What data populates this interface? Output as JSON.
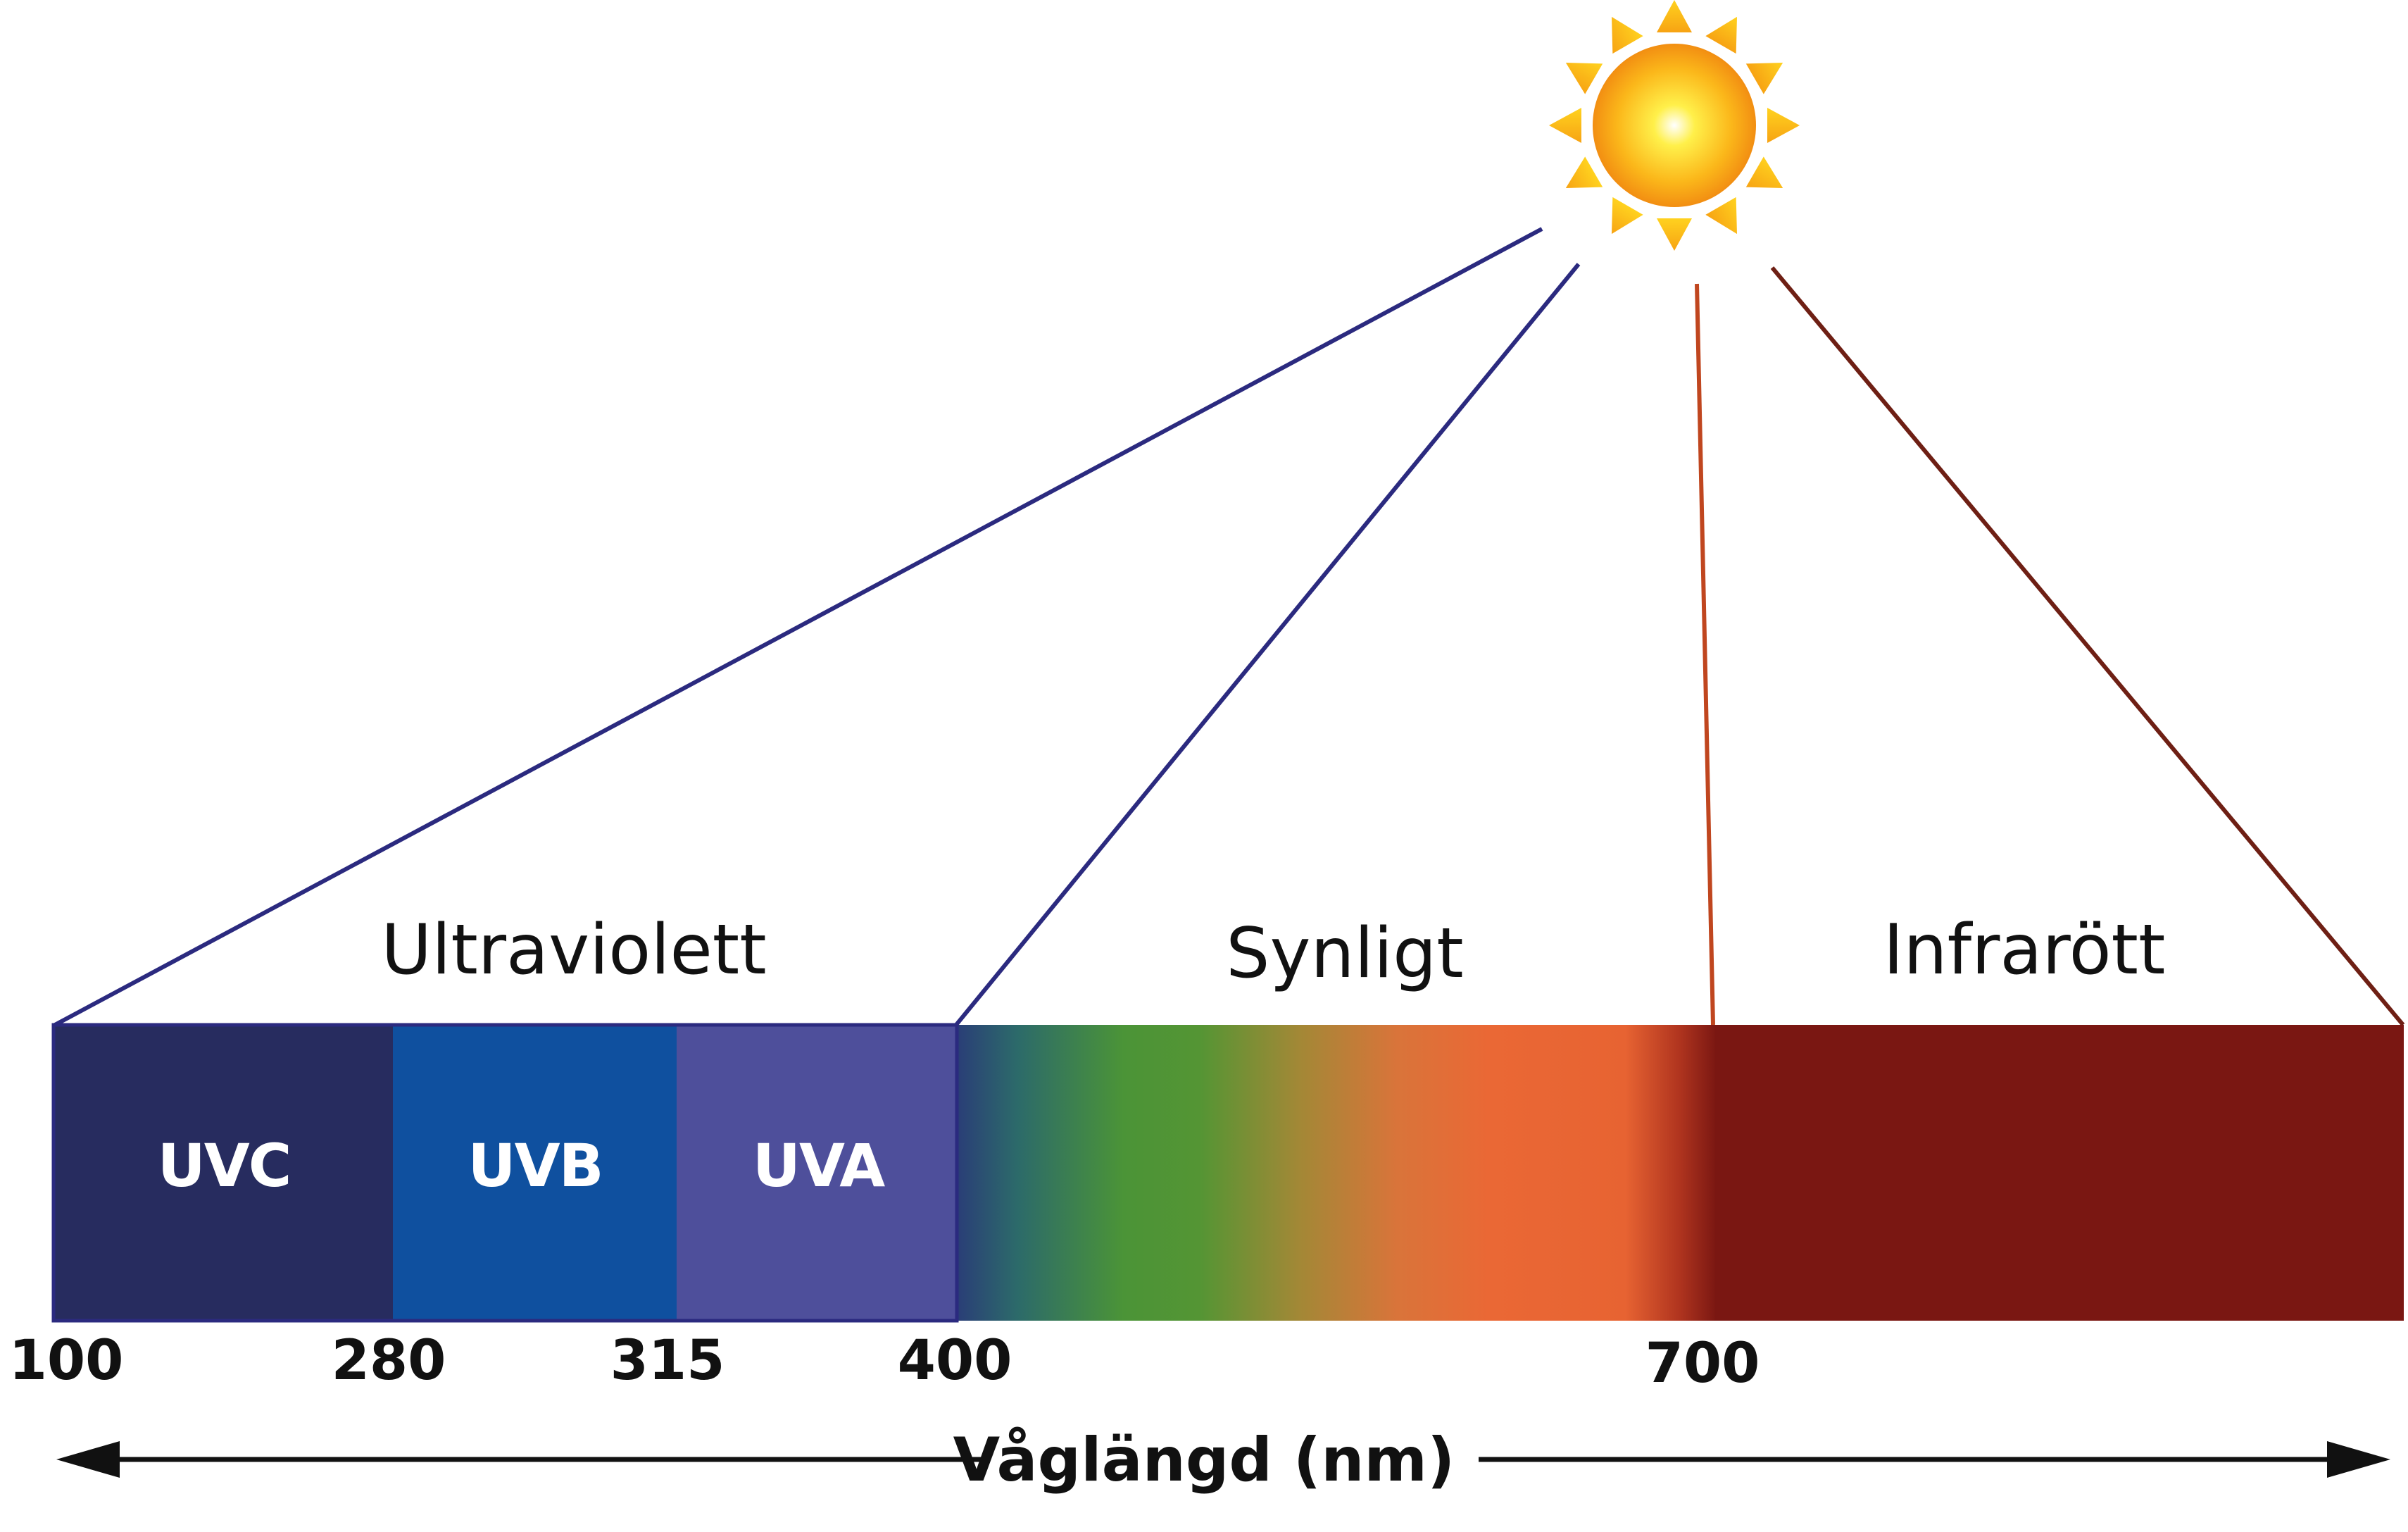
{
  "regions": {
    "ultraviolet": "Ultraviolett",
    "visible": "Synligt",
    "infrared": "Infrarött"
  },
  "bands": {
    "uvc": "UVC",
    "uvb": "UVB",
    "uva": "UVA"
  },
  "ticks": {
    "t100": "100",
    "t280": "280",
    "t315": "315",
    "t400": "400",
    "t700": "700"
  },
  "axis": {
    "title": "Våglängd (nm)"
  },
  "colors": {
    "uvc": "#272c5f",
    "uvb": "#0f509f",
    "uva": "#4e4f9b",
    "infrared": "#7a1712",
    "uv_line": "#2b2a7f",
    "ir_line_left": "#c0461f",
    "ir_line_right": "#6e1f14"
  },
  "icons": {
    "sun": "sun-icon"
  }
}
